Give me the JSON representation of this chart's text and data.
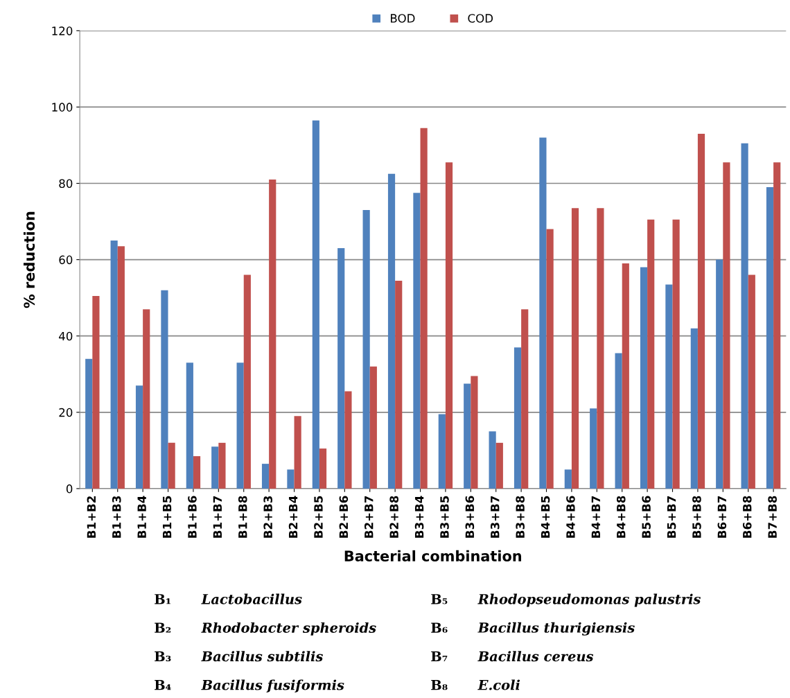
{
  "chart_data": {
    "type": "bar",
    "xlabel": "Bacterial combination",
    "ylabel": "% reduction",
    "categories": [
      "B1+B2",
      "B1+B3",
      "B1+B4",
      "B1+B5",
      "B1+B6",
      "B1+B7",
      "B1+B8",
      "B2+B3",
      "B2+B4",
      "B2+B5",
      "B2+B6",
      "B2+B7",
      "B2+B8",
      "B3+B4",
      "B3+B5",
      "B3+B6",
      "B3+B7",
      "B3+B8",
      "B4+B5",
      "B4+B6",
      "B4+B7",
      "B4+B8",
      "B5+B6",
      "B5+B7",
      "B5+B8",
      "B6+B7",
      "B6+B8",
      "B7+B8"
    ],
    "series": [
      {
        "name": "BOD",
        "color": "#4f81bd",
        "values": [
          34,
          65,
          27,
          52,
          33,
          11,
          33,
          6.5,
          5,
          96.5,
          63,
          73,
          82.5,
          77.5,
          19.5,
          27.5,
          15,
          37,
          92,
          5,
          21,
          35.5,
          58,
          53.5,
          42,
          60,
          90.5,
          79
        ]
      },
      {
        "name": "COD",
        "color": "#c0504d",
        "values": [
          50.5,
          63.5,
          47,
          12,
          8.5,
          12,
          56,
          81,
          19,
          10.5,
          25.5,
          32,
          54.5,
          94.5,
          85.5,
          29.5,
          12,
          47,
          68,
          73.5,
          73.5,
          59,
          70.5,
          70.5,
          93,
          85.5,
          56,
          85.5
        ]
      }
    ],
    "ylim": [
      0,
      120
    ],
    "yticks": [
      0,
      20,
      40,
      60,
      80,
      100,
      120
    ],
    "grid": "y",
    "legend": "top",
    "annotations": [
      "B₁ Lactobacillus",
      "B₂ Rhodobacter spheroids",
      "B₃ Bacillus subtilis",
      "B₄ Bacillus fusiformis",
      "B₅ Rhodopseudomonas palustris",
      "B₆ Bacillus thurigiensis",
      "B₇ Bacillus cereus",
      "B₈ E.coli"
    ]
  }
}
